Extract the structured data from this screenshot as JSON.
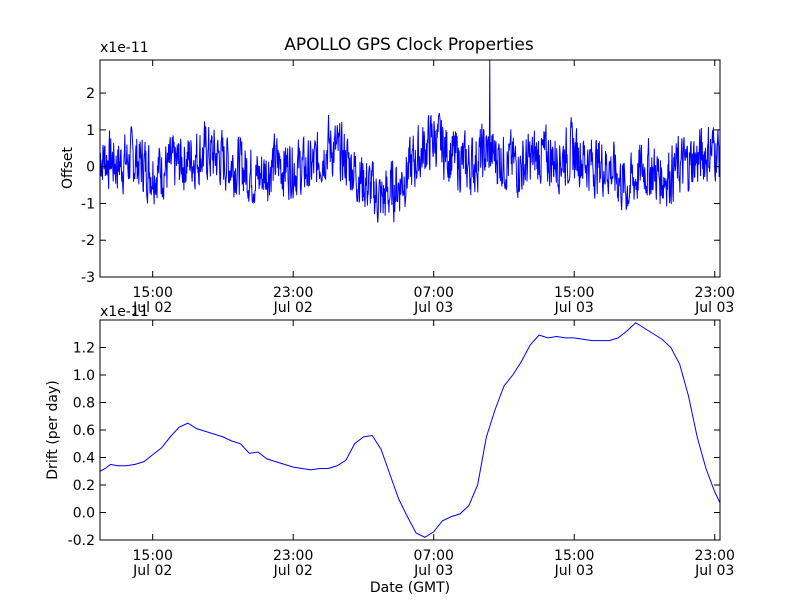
{
  "figure_title": "APOLLO GPS Clock Properties",
  "x_date_ticks": [
    {
      "time": "15:00",
      "date": "Jul 02",
      "hours": 15
    },
    {
      "time": "23:00",
      "date": "Jul 02",
      "hours": 23
    },
    {
      "time": "07:00",
      "date": "Jul 03",
      "hours": 31
    },
    {
      "time": "15:00",
      "date": "Jul 03",
      "hours": 39
    },
    {
      "time": "23:00",
      "date": "Jul 03",
      "hours": 47
    }
  ],
  "chart_data": [
    {
      "type": "line",
      "name": "offset",
      "title": "APOLLO GPS Clock Properties",
      "xlabel": "",
      "ylabel": "Offset",
      "scale_label": "x1e-11",
      "xlim_hours": [
        12.0,
        47.3
      ],
      "ylim": [
        -3,
        2.9
      ],
      "y_ticks": [
        -3,
        -2,
        -1,
        0,
        1,
        2
      ],
      "y_tick_labels": [
        "-3",
        "-2",
        "-1",
        "0",
        "1",
        "2"
      ],
      "color": "#0000ff",
      "noise_amplitude": 0.55,
      "spike": {
        "x_hours": 34.2,
        "y": 2.9
      },
      "x_hours": [
        12.0,
        13.0,
        14.0,
        15.0,
        16.0,
        17.0,
        18.0,
        19.0,
        20.0,
        21.0,
        22.0,
        23.0,
        24.0,
        25.0,
        26.0,
        27.0,
        28.0,
        29.0,
        30.0,
        31.0,
        32.0,
        33.0,
        34.0,
        35.0,
        36.0,
        37.0,
        38.0,
        39.0,
        40.0,
        41.0,
        42.0,
        43.0,
        44.0,
        45.0,
        46.0,
        47.0,
        47.3
      ],
      "y": [
        0.3,
        0.1,
        0.2,
        -0.1,
        0.0,
        0.2,
        0.4,
        0.2,
        0.0,
        -0.3,
        0.1,
        0.0,
        -0.1,
        0.6,
        0.2,
        -0.4,
        -0.9,
        -0.5,
        0.2,
        0.8,
        0.3,
        0.0,
        0.4,
        0.2,
        0.0,
        0.3,
        0.2,
        0.4,
        0.1,
        0.0,
        -0.6,
        0.0,
        -0.3,
        0.0,
        0.2,
        0.5,
        0.3
      ]
    },
    {
      "type": "line",
      "name": "drift",
      "title": "",
      "xlabel": "Date (GMT)",
      "ylabel": "Drift (per day)",
      "scale_label": "x1e-11",
      "xlim_hours": [
        12.0,
        47.3
      ],
      "ylim": [
        -0.2,
        1.4
      ],
      "y_ticks": [
        -0.2,
        0.0,
        0.2,
        0.4,
        0.6,
        0.8,
        1.0,
        1.2
      ],
      "y_tick_labels": [
        "-0.2",
        "0.0",
        "0.2",
        "0.4",
        "0.6",
        "0.8",
        "1.0",
        "1.2"
      ],
      "color": "#0000ff",
      "x_hours": [
        12.0,
        12.3,
        12.6,
        13.0,
        13.5,
        14.0,
        14.5,
        15.0,
        15.5,
        16.0,
        16.5,
        17.0,
        17.5,
        18.0,
        18.5,
        19.0,
        19.5,
        20.0,
        20.5,
        21.0,
        21.5,
        22.0,
        22.5,
        23.0,
        23.5,
        24.0,
        24.5,
        25.0,
        25.5,
        26.0,
        26.5,
        27.0,
        27.5,
        28.0,
        28.5,
        29.0,
        29.5,
        30.0,
        30.5,
        31.0,
        31.5,
        32.0,
        32.5,
        33.0,
        33.5,
        34.0,
        34.5,
        35.0,
        35.5,
        36.0,
        36.5,
        37.0,
        37.5,
        38.0,
        38.5,
        39.0,
        39.5,
        40.0,
        40.5,
        41.0,
        41.5,
        42.0,
        42.5,
        43.0,
        43.5,
        44.0,
        44.5,
        45.0,
        45.5,
        46.0,
        46.5,
        47.0,
        47.3
      ],
      "y": [
        0.3,
        0.32,
        0.35,
        0.34,
        0.34,
        0.35,
        0.37,
        0.42,
        0.47,
        0.55,
        0.62,
        0.65,
        0.61,
        0.59,
        0.57,
        0.55,
        0.52,
        0.5,
        0.43,
        0.44,
        0.39,
        0.37,
        0.35,
        0.33,
        0.32,
        0.31,
        0.32,
        0.32,
        0.34,
        0.38,
        0.5,
        0.55,
        0.56,
        0.46,
        0.28,
        0.1,
        -0.03,
        -0.15,
        -0.18,
        -0.14,
        -0.06,
        -0.03,
        -0.01,
        0.05,
        0.2,
        0.55,
        0.75,
        0.92,
        1.0,
        1.1,
        1.22,
        1.29,
        1.27,
        1.28,
        1.27,
        1.27,
        1.26,
        1.25,
        1.25,
        1.25,
        1.27,
        1.32,
        1.38,
        1.34,
        1.3,
        1.26,
        1.2,
        1.08,
        0.85,
        0.55,
        0.32,
        0.15,
        0.07
      ]
    }
  ]
}
